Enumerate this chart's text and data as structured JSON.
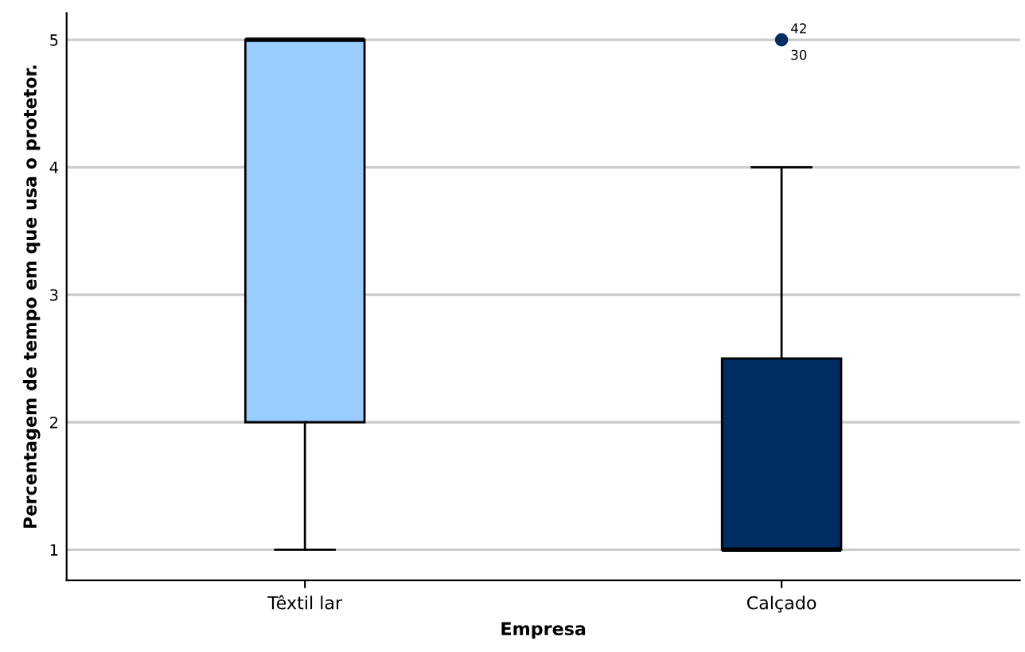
{
  "chart_data": {
    "type": "box",
    "xlabel": "Empresa",
    "ylabel": "Percentagem de tempo em que usa o protetor.",
    "categories": [
      "Têxtil lar",
      "Calçado"
    ],
    "boxes": [
      {
        "low": 1,
        "q1": 2,
        "median": 5,
        "q3": 5,
        "high": 5
      },
      {
        "low": 1,
        "q1": 1,
        "median": 1,
        "q3": 2.5,
        "high": 4,
        "outliers": [
          5
        ]
      }
    ],
    "colors": [
      "#99ccff",
      "#002d62"
    ],
    "ylim": [
      0.76,
      5.21
    ],
    "yticks": [
      1,
      2,
      3,
      4,
      5
    ],
    "grid": "y",
    "annotations": [
      "42",
      "30"
    ]
  }
}
